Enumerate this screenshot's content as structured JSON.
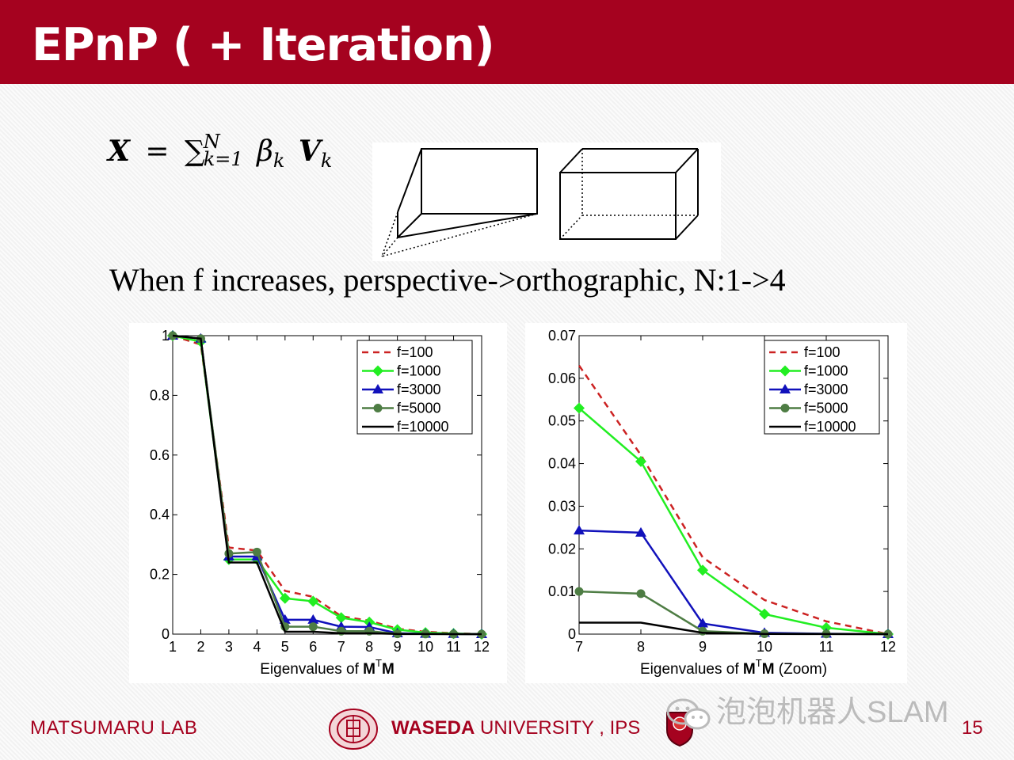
{
  "slide": {
    "title": "EPnP ( + Iteration)",
    "statement": "When f increases, perspective->orthographic, N:1->4"
  },
  "formula": {
    "lhs": "X",
    "equals": "=",
    "sum": "∑",
    "upper": "N",
    "lower": "k=1",
    "beta": "β",
    "beta_sub": "k",
    "vec": "V",
    "vec_sub": "k"
  },
  "footer": {
    "lab": "MATSUMARU LAB",
    "university_bold": "WASEDA",
    "university_rest": " UNIVERSITY , IPS",
    "page_number": "15",
    "watermark": "泡泡机器人SLAM"
  },
  "colors": {
    "brand": "#a5021f",
    "f100": "#cc2222",
    "f1000": "#22ee22",
    "f3000": "#1111bb",
    "f5000": "#4e7d44",
    "f10000": "#000000"
  },
  "legend_entries": [
    "f=100",
    "f=1000",
    "f=3000",
    "f=5000",
    "f=10000"
  ],
  "chart_data": [
    {
      "type": "line",
      "title": "",
      "xlabel": "Eigenvalues of M",
      "xlabel_sup": "T",
      "xlabel_end": "M",
      "x": [
        1,
        2,
        3,
        4,
        5,
        6,
        7,
        8,
        9,
        10,
        11,
        12
      ],
      "xlim": [
        1,
        12
      ],
      "ylim": [
        0,
        1
      ],
      "yticks": [
        0,
        0.2,
        0.4,
        0.6,
        0.8,
        1
      ],
      "ytick_labels": [
        "0",
        "0.2",
        "0.4",
        "0.6",
        "0.8",
        "1"
      ],
      "legend_position": "top-right",
      "series": [
        {
          "name": "f=100",
          "values": [
            1,
            0.97,
            0.29,
            0.28,
            0.145,
            0.125,
            0.06,
            0.045,
            0.018,
            0.008,
            0.003,
            0
          ]
        },
        {
          "name": "f=1000",
          "values": [
            1,
            0.98,
            0.25,
            0.25,
            0.12,
            0.11,
            0.055,
            0.04,
            0.015,
            0.005,
            0.002,
            0
          ]
        },
        {
          "name": "f=3000",
          "values": [
            1,
            0.99,
            0.26,
            0.26,
            0.048,
            0.048,
            0.025,
            0.024,
            0.003,
            0.001,
            0.0005,
            0
          ]
        },
        {
          "name": "f=5000",
          "values": [
            1,
            0.99,
            0.27,
            0.275,
            0.025,
            0.025,
            0.01,
            0.01,
            0.001,
            0.0005,
            0.0002,
            0
          ]
        },
        {
          "name": "f=10000",
          "values": [
            1,
            0.99,
            0.24,
            0.24,
            0.008,
            0.008,
            0.003,
            0.003,
            0.0005,
            0.0002,
            0.0001,
            0
          ]
        }
      ]
    },
    {
      "type": "line",
      "title": "",
      "xlabel": "Eigenvalues of M",
      "xlabel_sup": "T",
      "xlabel_end": "M (Zoom)",
      "x": [
        7,
        8,
        9,
        10,
        11,
        12
      ],
      "xlim": [
        7,
        12
      ],
      "ylim": [
        0,
        0.07
      ],
      "yticks": [
        0,
        0.01,
        0.02,
        0.03,
        0.04,
        0.05,
        0.06,
        0.07
      ],
      "ytick_labels": [
        "0",
        "0.01",
        "0.02",
        "0.03",
        "0.04",
        "0.05",
        "0.06",
        "0.07"
      ],
      "legend_position": "top-right",
      "series": [
        {
          "name": "f=100",
          "values": [
            0.063,
            0.042,
            0.018,
            0.008,
            0.003,
            0
          ]
        },
        {
          "name": "f=1000",
          "values": [
            0.053,
            0.0405,
            0.015,
            0.0047,
            0.0015,
            0
          ]
        },
        {
          "name": "f=3000",
          "values": [
            0.0243,
            0.0238,
            0.0025,
            0.0003,
            0.0001,
            0
          ]
        },
        {
          "name": "f=5000",
          "values": [
            0.01,
            0.0095,
            0.0007,
            0.0001,
            5e-05,
            0
          ]
        },
        {
          "name": "f=10000",
          "values": [
            0.0027,
            0.0027,
            0.0003,
            5e-05,
            2e-05,
            0
          ]
        }
      ]
    }
  ]
}
